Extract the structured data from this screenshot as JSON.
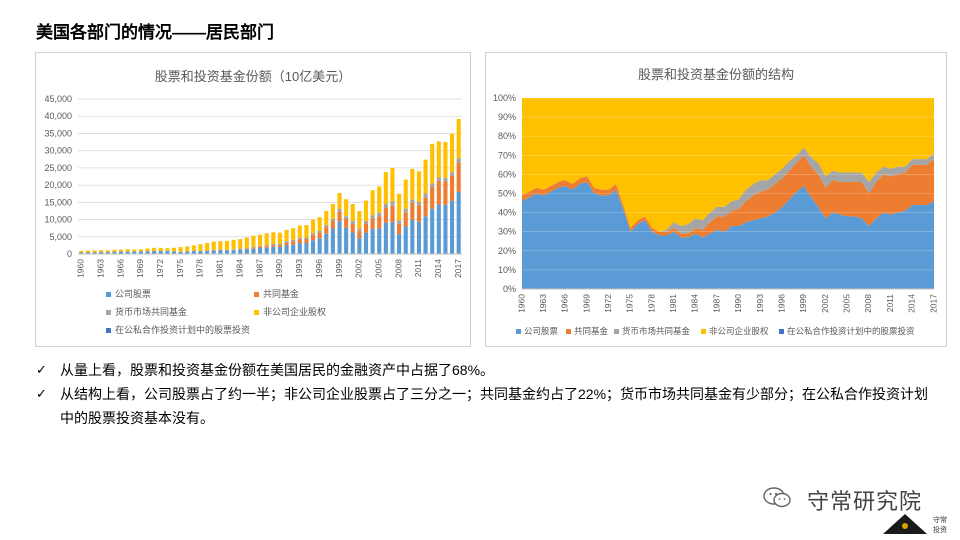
{
  "page": {
    "title": "美国各部门的情况——居民部门"
  },
  "bullets": [
    "从量上看，股票和投资基金份额在美国居民的金融资产中占据了68%。",
    "从结构上看，公司股票占了约一半；非公司企业股票占了三分之一；共同基金约占了22%；货币市场共同基金有少部分；在公私合作投资计划中的股票投资基本没有。"
  ],
  "check_mark": "✓",
  "logo": {
    "name": "守常研究院",
    "stamp": "守常投资",
    "wechat_icon": "wechat-icon"
  },
  "colors": {
    "corporate": "#5b9bd5",
    "mutual": "#ed7d31",
    "money": "#a5a5a5",
    "noncorp": "#ffc000",
    "ppip": "#4472c4",
    "grid": "#d9d9d9",
    "axis_text": "#595959"
  },
  "chart_data": [
    {
      "type": "bar",
      "stacked": true,
      "title": "股票和投资基金份额（10亿美元）",
      "ylim": [
        0,
        45000
      ],
      "yticks": [
        0,
        5000,
        10000,
        15000,
        20000,
        25000,
        30000,
        35000,
        40000,
        45000
      ],
      "ytick_labels": [
        "0",
        "5,000",
        "10,000",
        "15,000",
        "20,000",
        "25,000",
        "30,000",
        "35,000",
        "40,000",
        "45,000"
      ],
      "xtick_labels": [
        "1960",
        "1963",
        "1966",
        "1969",
        "1972",
        "1975",
        "1978",
        "1981",
        "1984",
        "1987",
        "1990",
        "1993",
        "1996",
        "1999",
        "2002",
        "2005",
        "2008",
        "2011",
        "2014",
        "2017"
      ],
      "x_start": 1960,
      "x_end": 2017,
      "legend": [
        "公司股票",
        "共同基金",
        "货币市场共同基金",
        "非公司企业股权",
        "在公私合作投资计划中的股票投资"
      ],
      "legend_position": "bottom",
      "totals": [
        900,
        1000,
        1000,
        1100,
        1100,
        1200,
        1300,
        1400,
        1300,
        1400,
        1600,
        1800,
        1800,
        1700,
        1800,
        2000,
        2200,
        2500,
        2800,
        3200,
        3600,
        3700,
        3800,
        4100,
        4300,
        4800,
        5300,
        5600,
        6000,
        6300,
        6200,
        7000,
        7500,
        8300,
        8400,
        10000,
        10700,
        12500,
        14500,
        17700,
        15900,
        14500,
        12500,
        15500,
        18500,
        19600,
        23800,
        25000,
        17500,
        21600,
        24700,
        24000,
        27400,
        32000,
        32700,
        32500,
        34900,
        39200
      ]
    },
    {
      "type": "area",
      "stacked_percent": true,
      "title": "股票和投资基金份额的结构",
      "ylim": [
        0,
        100
      ],
      "yticks": [
        0,
        10,
        20,
        30,
        40,
        50,
        60,
        70,
        80,
        90,
        100
      ],
      "ytick_labels": [
        "0%",
        "10%",
        "20%",
        "30%",
        "40%",
        "50%",
        "60%",
        "70%",
        "80%",
        "90%",
        "100%"
      ],
      "xtick_labels": [
        "1960",
        "1963",
        "1966",
        "1969",
        "1972",
        "1975",
        "1978",
        "1981",
        "1984",
        "1987",
        "1990",
        "1993",
        "1996",
        "1999",
        "2002",
        "2005",
        "2008",
        "2011",
        "2014",
        "2017"
      ],
      "x_start": 1960,
      "x_end": 2017,
      "legend": [
        "公司股票",
        "共同基金",
        "货币市场共同基金",
        "非公司企业股权",
        "在公私合作投资计划中的股票投资"
      ],
      "legend_position": "bottom",
      "series": [
        {
          "name": "公司股票",
          "values": [
            46,
            48,
            50,
            49,
            51,
            53,
            54,
            52,
            55,
            56,
            50,
            49,
            49,
            52,
            42,
            30,
            34,
            36,
            30,
            28,
            28,
            30,
            27,
            27,
            29,
            27,
            29,
            31,
            30,
            33,
            33,
            35,
            36,
            37,
            38,
            40,
            43,
            47,
            51,
            54,
            48,
            43,
            37,
            40,
            39,
            38,
            38,
            37,
            33,
            37,
            40,
            39,
            40,
            41,
            44,
            44,
            44,
            46
          ]
        },
        {
          "name": "共同基金",
          "values": [
            3,
            3,
            3,
            3,
            3,
            3,
            3,
            3,
            3,
            3,
            3,
            3,
            3,
            3,
            2,
            2,
            2,
            2,
            2,
            2,
            2,
            2,
            2,
            2,
            3,
            4,
            6,
            7,
            8,
            8,
            9,
            11,
            13,
            14,
            14,
            15,
            15,
            15,
            15,
            16,
            16,
            17,
            16,
            17,
            17,
            18,
            18,
            19,
            17,
            19,
            20,
            20,
            20,
            20,
            21,
            21,
            21,
            22
          ]
        },
        {
          "name": "货币市场共同基金",
          "values": [
            0,
            0,
            0,
            0,
            0,
            0,
            0,
            0,
            0,
            0,
            0,
            0,
            0,
            0,
            0,
            0,
            0,
            0,
            0,
            0,
            1,
            3,
            4,
            5,
            5,
            5,
            5,
            5,
            5,
            5,
            5,
            6,
            6,
            6,
            5,
            5,
            5,
            5,
            4,
            4,
            5,
            6,
            6,
            5,
            5,
            5,
            5,
            5,
            6,
            5,
            4,
            4,
            4,
            3,
            3,
            3,
            3,
            3
          ]
        },
        {
          "name": "非公司企业股权",
          "values": [
            51,
            49,
            47,
            48,
            46,
            44,
            43,
            45,
            42,
            41,
            47,
            48,
            48,
            45,
            56,
            68,
            64,
            62,
            68,
            70,
            69,
            65,
            67,
            66,
            63,
            64,
            60,
            57,
            57,
            54,
            53,
            48,
            45,
            43,
            43,
            40,
            37,
            33,
            30,
            26,
            31,
            34,
            41,
            38,
            39,
            39,
            39,
            39,
            44,
            39,
            36,
            37,
            36,
            36,
            32,
            32,
            32,
            29
          ]
        },
        {
          "name": "在公私合作投资计划中的股票投资",
          "values": [
            0,
            0,
            0,
            0,
            0,
            0,
            0,
            0,
            0,
            0,
            0,
            0,
            0,
            0,
            0,
            0,
            0,
            0,
            0,
            0,
            0,
            0,
            0,
            0,
            0,
            0,
            0,
            0,
            0,
            0,
            0,
            0,
            0,
            0,
            0,
            0,
            0,
            0,
            0,
            0,
            0,
            0,
            0,
            0,
            0,
            0,
            0,
            0,
            0,
            0,
            0,
            0,
            0,
            0,
            0,
            0,
            0,
            0
          ]
        }
      ]
    }
  ]
}
